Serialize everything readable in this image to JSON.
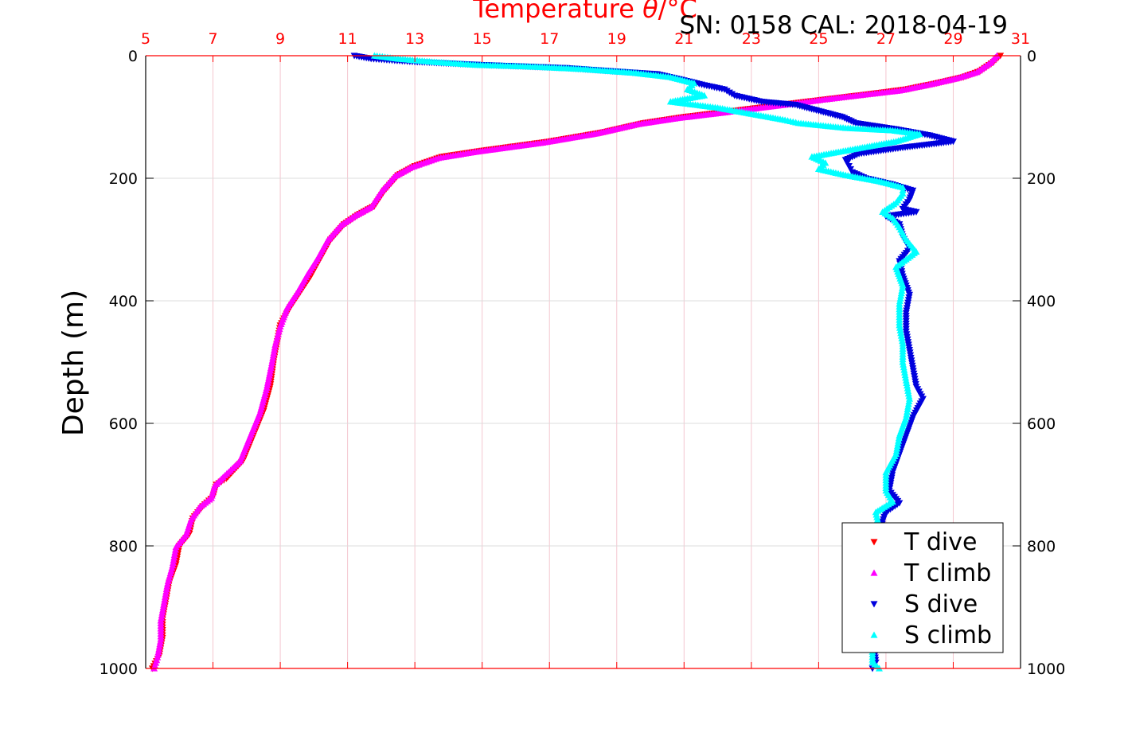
{
  "chart_data": {
    "type": "scatter",
    "title": "SN: 0158  CAL: 2018-04-19",
    "xlabel_prefix": "Temperature ",
    "xlabel_symbol": "θ",
    "xlabel_suffix": "/°C",
    "ylabel": "Depth (m)",
    "xlim": [
      5,
      31
    ],
    "ylim": [
      0,
      1000
    ],
    "y_reversed": true,
    "x_ticks": [
      "5",
      "7",
      "9",
      "11",
      "13",
      "15",
      "17",
      "19",
      "21",
      "23",
      "25",
      "27",
      "29",
      "31"
    ],
    "y_ticks": [
      "0",
      "200",
      "400",
      "600",
      "800",
      "1000"
    ],
    "grid": true,
    "legend_position": "bottom-right",
    "colors": {
      "axis_top": "#ff0000",
      "t_dive": "#ff0000",
      "t_climb": "#ff00ff",
      "s_dive": "#0000dd",
      "s_climb": "#00ffff"
    },
    "series": [
      {
        "name": "T dive",
        "marker": "triangle-down",
        "color": "#ff0000",
        "points": [
          [
            30.4,
            0
          ],
          [
            30.2,
            10
          ],
          [
            29.8,
            25
          ],
          [
            29.3,
            35
          ],
          [
            28.5,
            45
          ],
          [
            27.6,
            55
          ],
          [
            26.6,
            62
          ],
          [
            25.4,
            70
          ],
          [
            24.2,
            78
          ],
          [
            23.2,
            85
          ],
          [
            22.2,
            92
          ],
          [
            21.0,
            100
          ],
          [
            19.8,
            110
          ],
          [
            18.6,
            125
          ],
          [
            17.0,
            140
          ],
          [
            15.0,
            155
          ],
          [
            13.8,
            165
          ],
          [
            13.0,
            180
          ],
          [
            12.5,
            195
          ],
          [
            12.1,
            220
          ],
          [
            11.8,
            245
          ],
          [
            11.3,
            260
          ],
          [
            10.9,
            275
          ],
          [
            10.5,
            300
          ],
          [
            10.2,
            330
          ],
          [
            9.9,
            360
          ],
          [
            9.6,
            385
          ],
          [
            9.3,
            410
          ],
          [
            9.0,
            440
          ],
          [
            8.9,
            470
          ],
          [
            8.8,
            500
          ],
          [
            8.7,
            540
          ],
          [
            8.5,
            580
          ],
          [
            8.2,
            620
          ],
          [
            7.9,
            660
          ],
          [
            7.4,
            690
          ],
          [
            7.1,
            700
          ],
          [
            7.0,
            720
          ],
          [
            6.7,
            735
          ],
          [
            6.4,
            755
          ],
          [
            6.3,
            780
          ],
          [
            6.0,
            800
          ],
          [
            5.9,
            830
          ],
          [
            5.7,
            860
          ],
          [
            5.6,
            890
          ],
          [
            5.5,
            920
          ],
          [
            5.5,
            950
          ],
          [
            5.4,
            980
          ],
          [
            5.2,
            1000
          ]
        ]
      },
      {
        "name": "T climb",
        "marker": "triangle-up",
        "color": "#ff00ff",
        "points": [
          [
            30.3,
            0
          ],
          [
            30.1,
            12
          ],
          [
            29.7,
            27
          ],
          [
            29.1,
            37
          ],
          [
            28.3,
            47
          ],
          [
            27.4,
            57
          ],
          [
            26.3,
            64
          ],
          [
            25.1,
            72
          ],
          [
            24.0,
            80
          ],
          [
            23.0,
            87
          ],
          [
            22.0,
            94
          ],
          [
            20.8,
            102
          ],
          [
            19.6,
            112
          ],
          [
            18.4,
            127
          ],
          [
            16.8,
            142
          ],
          [
            14.8,
            157
          ],
          [
            13.7,
            167
          ],
          [
            12.9,
            182
          ],
          [
            12.4,
            197
          ],
          [
            12.0,
            222
          ],
          [
            11.7,
            247
          ],
          [
            11.2,
            262
          ],
          [
            10.8,
            277
          ],
          [
            10.4,
            302
          ],
          [
            10.1,
            332
          ],
          [
            9.8,
            358
          ],
          [
            9.5,
            387
          ],
          [
            9.2,
            412
          ],
          [
            9.0,
            442
          ],
          [
            8.85,
            472
          ],
          [
            8.75,
            502
          ],
          [
            8.6,
            542
          ],
          [
            8.4,
            582
          ],
          [
            8.1,
            622
          ],
          [
            7.8,
            662
          ],
          [
            7.3,
            688
          ],
          [
            7.05,
            702
          ],
          [
            6.95,
            722
          ],
          [
            6.6,
            737
          ],
          [
            6.35,
            757
          ],
          [
            6.2,
            782
          ],
          [
            5.9,
            802
          ],
          [
            5.8,
            832
          ],
          [
            5.65,
            862
          ],
          [
            5.55,
            892
          ],
          [
            5.45,
            922
          ],
          [
            5.45,
            952
          ],
          [
            5.35,
            982
          ],
          [
            5.25,
            1000
          ]
        ]
      },
      {
        "name": "S dive",
        "marker": "triangle-down",
        "color": "#0000dd",
        "points": [
          [
            11.2,
            0
          ],
          [
            11.7,
            5
          ],
          [
            12.4,
            8
          ],
          [
            13.0,
            10
          ],
          [
            15.0,
            15
          ],
          [
            17.5,
            20
          ],
          [
            18.8,
            25
          ],
          [
            20.2,
            30
          ],
          [
            21.0,
            40
          ],
          [
            21.6,
            48
          ],
          [
            22.2,
            55
          ],
          [
            22.5,
            65
          ],
          [
            23.3,
            75
          ],
          [
            24.3,
            80
          ],
          [
            25.0,
            90
          ],
          [
            25.7,
            100
          ],
          [
            26.1,
            110
          ],
          [
            27.3,
            120
          ],
          [
            28.3,
            130
          ],
          [
            29.0,
            140
          ],
          [
            27.5,
            150
          ],
          [
            26.2,
            160
          ],
          [
            25.8,
            170
          ],
          [
            25.9,
            180
          ],
          [
            26.0,
            190
          ],
          [
            26.4,
            200
          ],
          [
            27.2,
            210
          ],
          [
            27.8,
            220
          ],
          [
            27.7,
            235
          ],
          [
            27.5,
            250
          ],
          [
            27.9,
            255
          ],
          [
            27.0,
            262
          ],
          [
            27.4,
            275
          ],
          [
            27.5,
            295
          ],
          [
            27.7,
            315
          ],
          [
            27.4,
            335
          ],
          [
            27.5,
            360
          ],
          [
            27.7,
            390
          ],
          [
            27.6,
            420
          ],
          [
            27.6,
            450
          ],
          [
            27.7,
            480
          ],
          [
            27.8,
            510
          ],
          [
            27.9,
            540
          ],
          [
            28.1,
            560
          ],
          [
            27.8,
            590
          ],
          [
            27.6,
            620
          ],
          [
            27.4,
            650
          ],
          [
            27.2,
            680
          ],
          [
            27.1,
            710
          ],
          [
            27.4,
            730
          ],
          [
            27.0,
            745
          ],
          [
            26.9,
            760
          ],
          [
            26.8,
            800
          ],
          [
            26.7,
            850
          ],
          [
            26.6,
            900
          ],
          [
            26.6,
            950
          ],
          [
            26.7,
            990
          ],
          [
            26.6,
            1000
          ]
        ]
      },
      {
        "name": "S climb",
        "marker": "triangle-up",
        "color": "#00ffff",
        "points": [
          [
            11.8,
            0
          ],
          [
            12.5,
            5
          ],
          [
            13.5,
            10
          ],
          [
            14.8,
            15
          ],
          [
            16.5,
            18
          ],
          [
            18.0,
            22
          ],
          [
            19.5,
            28
          ],
          [
            20.6,
            35
          ],
          [
            21.3,
            45
          ],
          [
            21.1,
            55
          ],
          [
            21.6,
            65
          ],
          [
            20.6,
            75
          ],
          [
            22.0,
            85
          ],
          [
            23.0,
            95
          ],
          [
            24.0,
            105
          ],
          [
            24.4,
            110
          ],
          [
            25.8,
            118
          ],
          [
            27.2,
            122
          ],
          [
            28.0,
            128
          ],
          [
            27.3,
            140
          ],
          [
            25.8,
            155
          ],
          [
            24.8,
            165
          ],
          [
            25.2,
            175
          ],
          [
            25.0,
            185
          ],
          [
            25.8,
            195
          ],
          [
            26.8,
            205
          ],
          [
            27.5,
            215
          ],
          [
            27.5,
            225
          ],
          [
            27.3,
            240
          ],
          [
            26.9,
            255
          ],
          [
            27.2,
            265
          ],
          [
            27.4,
            280
          ],
          [
            27.6,
            300
          ],
          [
            27.9,
            320
          ],
          [
            27.3,
            345
          ],
          [
            27.5,
            375
          ],
          [
            27.4,
            405
          ],
          [
            27.4,
            440
          ],
          [
            27.5,
            470
          ],
          [
            27.5,
            500
          ],
          [
            27.6,
            530
          ],
          [
            27.7,
            560
          ],
          [
            27.6,
            590
          ],
          [
            27.4,
            620
          ],
          [
            27.3,
            650
          ],
          [
            27.0,
            680
          ],
          [
            27.0,
            710
          ],
          [
            27.2,
            728
          ],
          [
            26.7,
            745
          ],
          [
            26.8,
            770
          ],
          [
            26.7,
            820
          ],
          [
            26.6,
            870
          ],
          [
            26.5,
            920
          ],
          [
            26.6,
            960
          ],
          [
            26.6,
            990
          ],
          [
            26.8,
            1000
          ]
        ]
      }
    ]
  }
}
